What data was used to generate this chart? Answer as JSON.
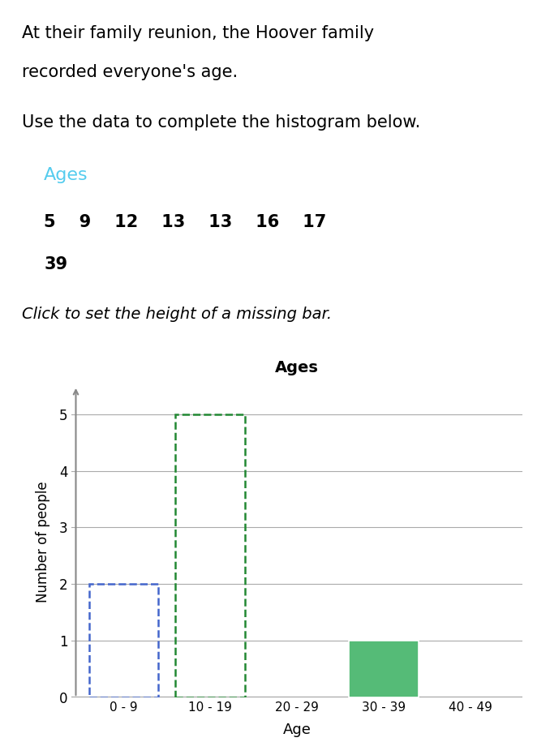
{
  "title_text1": "At their family reunion, the Hoover family",
  "title_text2": "recorded everyone's age.",
  "title_text3": "Use the data to complete the histogram below.",
  "ages_label": "Ages",
  "ages_label_color": "#55CCEE",
  "data_row1": "5    9    12    13    13    16    17",
  "data_row2": "39",
  "instruction": "Click to set the height of a missing bar.",
  "chart_title": "Ages",
  "xlabel": "Age",
  "ylabel": "Number of people",
  "bins": [
    "0 - 9",
    "10 - 19",
    "20 - 29",
    "30 - 39",
    "40 - 49"
  ],
  "counts": [
    2,
    5,
    0,
    1,
    0
  ],
  "ylim": [
    0,
    5.5
  ],
  "yticks": [
    0,
    1,
    2,
    3,
    4,
    5
  ],
  "bar_style": [
    "dashed_blue",
    "dashed_green",
    "none",
    "solid_green",
    "none"
  ],
  "dashed_blue_color": "#4466CC",
  "dashed_green_color": "#228833",
  "solid_green_color": "#55BB77",
  "grid_color": "#AAAAAA",
  "axis_color": "#888888",
  "background_color": "#FFFFFF"
}
